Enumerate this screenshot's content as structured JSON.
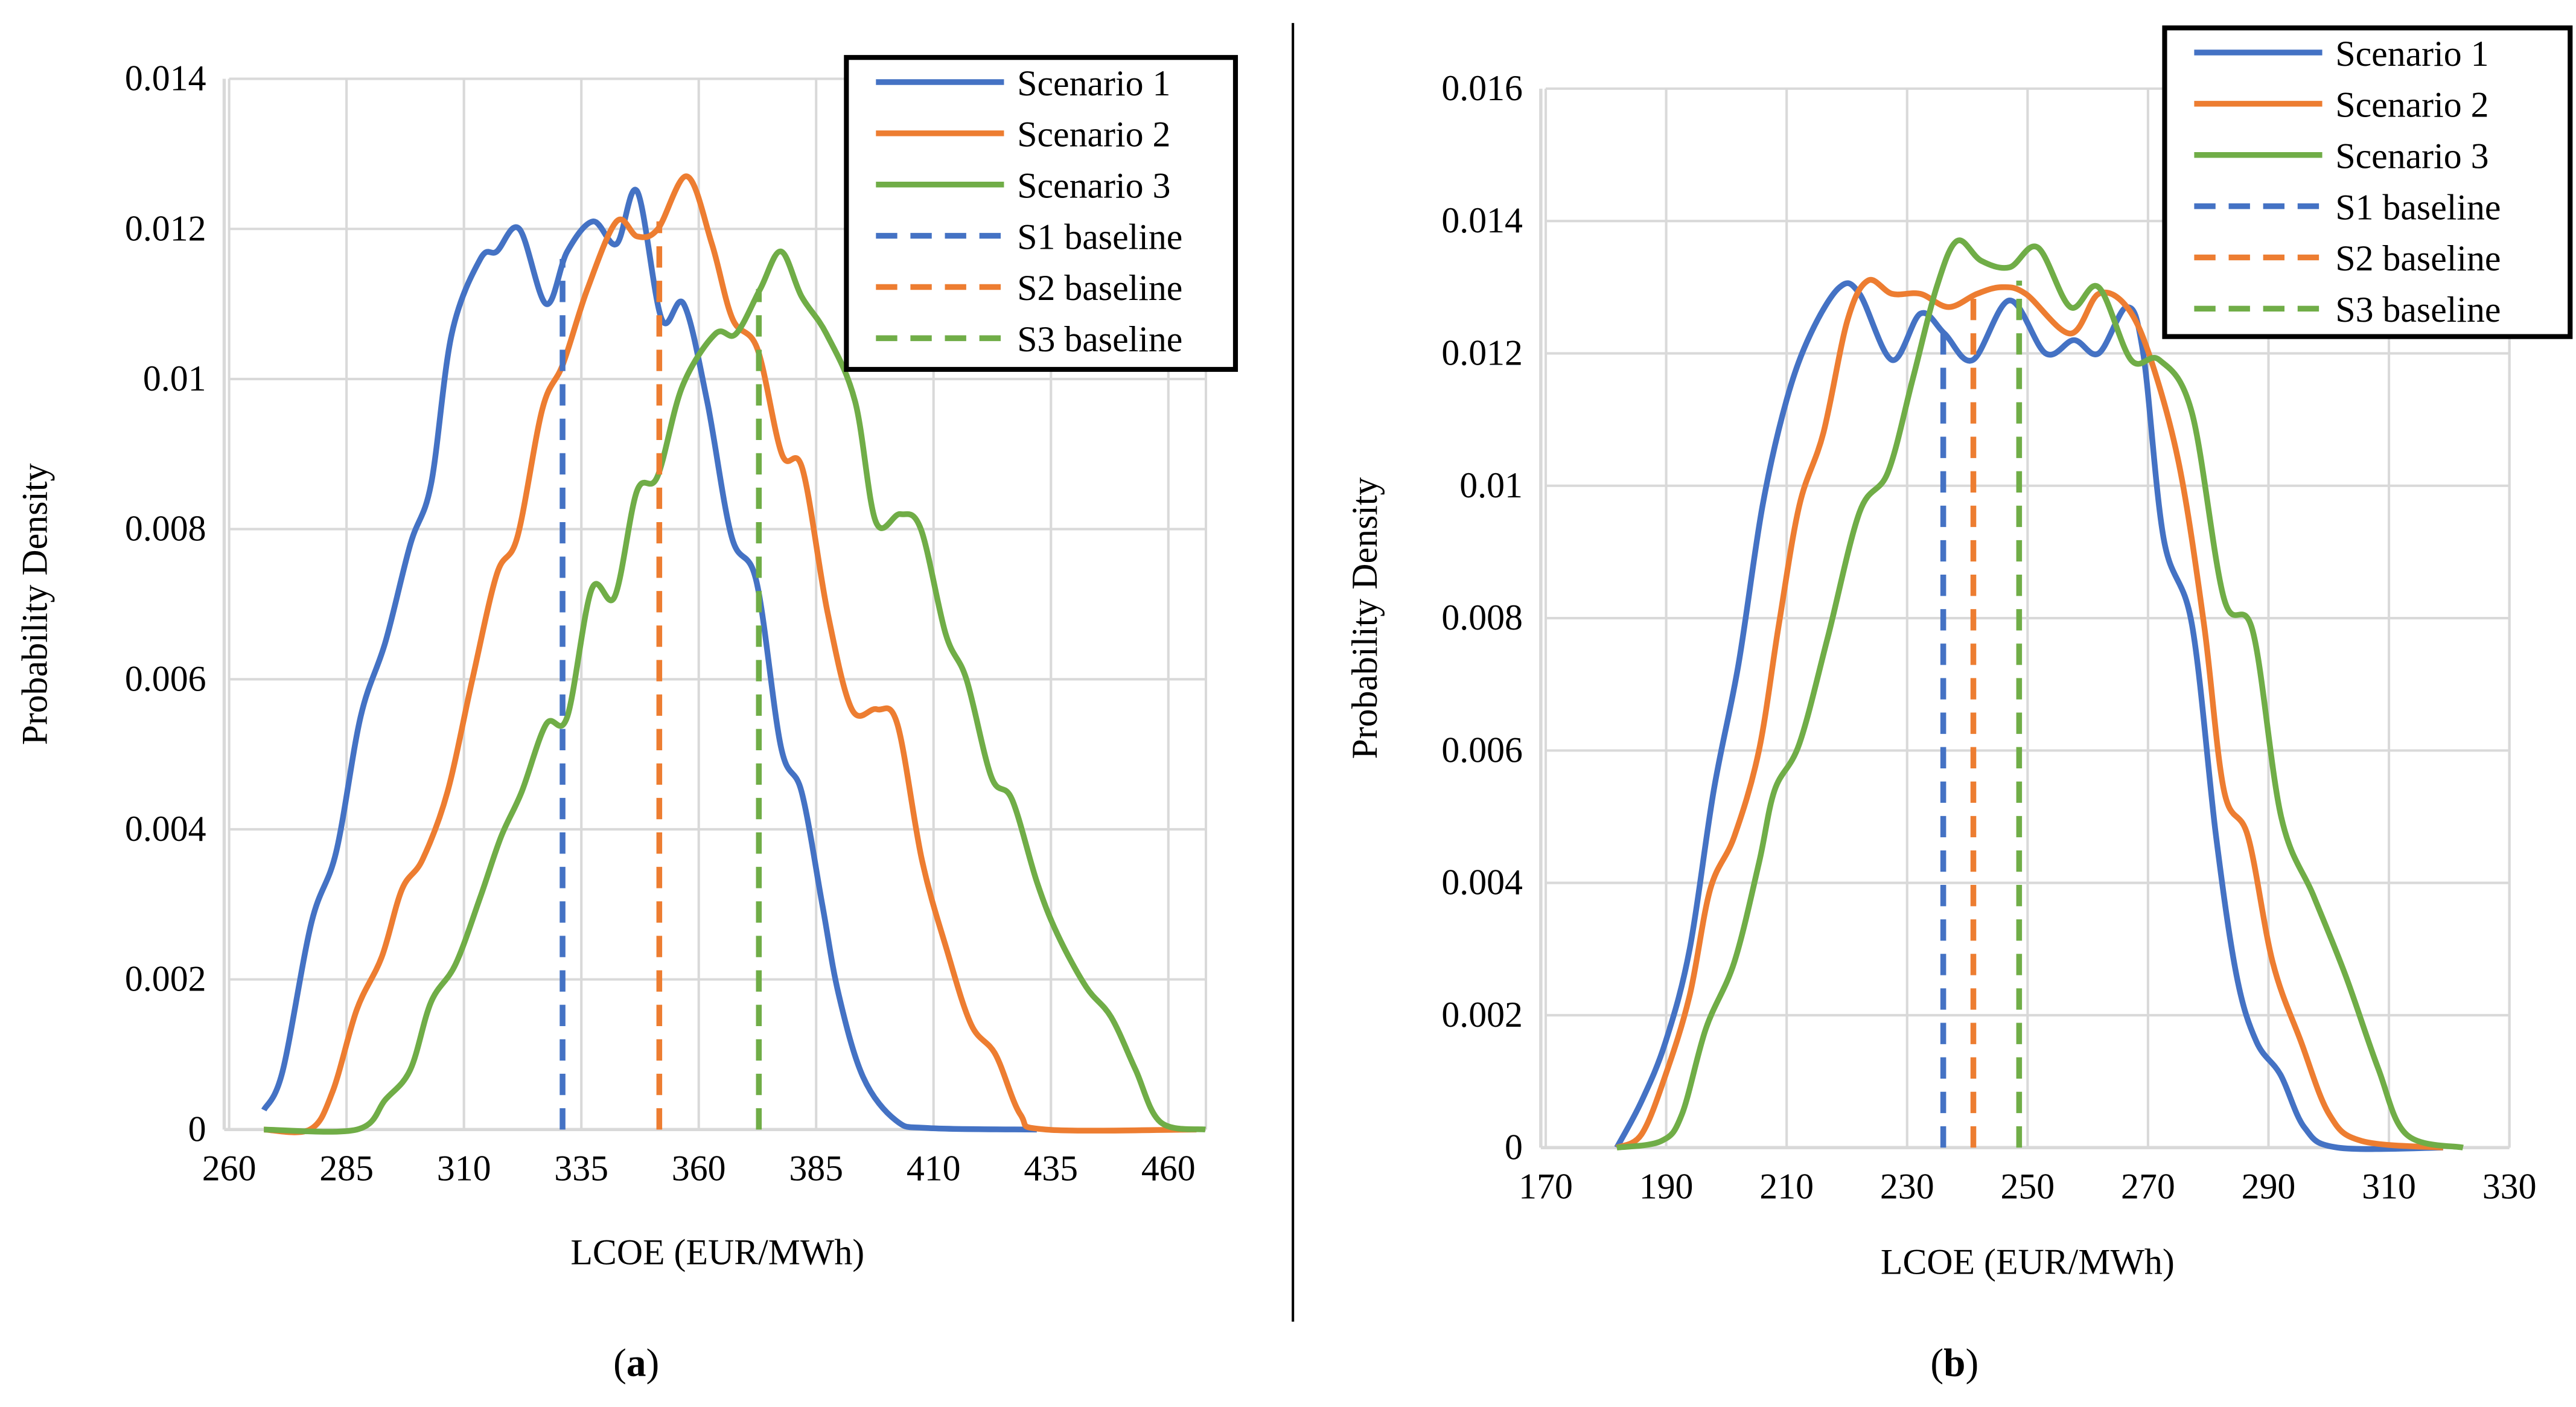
{
  "colors": {
    "s1": "#4472C4",
    "s2": "#ED7D31",
    "s3": "#70AD47",
    "grid": "#D9D9D9"
  },
  "chart_data": [
    {
      "type": "line",
      "caption_letter": "a",
      "xlabel": "LCOE (EUR/MWh)",
      "ylabel": "Probability Density",
      "xlim": [
        260,
        468
      ],
      "ylim": [
        0,
        0.014
      ],
      "xticks": [
        "260",
        "285",
        "310",
        "335",
        "360",
        "385",
        "410",
        "435",
        "460"
      ],
      "yticks": [
        "0",
        "0.002",
        "0.004",
        "0.006",
        "0.008",
        "0.01",
        "0.012",
        "0.014"
      ],
      "grid": true,
      "legend_position": "top-right",
      "legend": [
        "Scenario 1",
        "Scenario 2",
        "Scenario 3",
        "S1 baseline",
        "S2 baseline",
        "S3 baseline"
      ],
      "series": [
        {
          "name": "Scenario 1",
          "color_key": "s1",
          "x": [
            267.4,
            271.4,
            277.5,
            282.8,
            288,
            293.3,
            298.6,
            303,
            307.4,
            313.5,
            317,
            321.8,
            327.5,
            332,
            337.5,
            342.5,
            346.9,
            352.1,
            356.8,
            361.8,
            367,
            372.3,
            377.5,
            381.9,
            386.3,
            389.8,
            395,
            402,
            409,
            432
          ],
          "y": [
            0.00026,
            0.00078,
            0.00275,
            0.0037,
            0.0055,
            0.0065,
            0.0078,
            0.0086,
            0.0106,
            0.0116,
            0.0117,
            0.012,
            0.011,
            0.0117,
            0.0121,
            0.0118,
            0.0125,
            0.0108,
            0.011,
            0.0097,
            0.0079,
            0.0073,
            0.0051,
            0.0045,
            0.003,
            0.0018,
            0.0007,
            0.00012,
            2e-05,
            0
          ]
        },
        {
          "name": "Scenario 2",
          "color_key": "s2",
          "x": [
            267.4,
            277.2,
            282,
            287.2,
            292.5,
            296.8,
            301.2,
            306.5,
            311.8,
            317,
            321.4,
            326.7,
            331.1,
            336.3,
            342.5,
            346.9,
            351.3,
            357.5,
            362.8,
            367.2,
            372.5,
            377.7,
            382.1,
            387.4,
            392.6,
            397.9,
            402.3,
            407.5,
            412.8,
            418,
            423.2,
            428.5,
            434,
            466
          ],
          "y": [
            0,
            0,
            0.0005,
            0.0016,
            0.0023,
            0.0032,
            0.0036,
            0.0045,
            0.006,
            0.0074,
            0.0079,
            0.0096,
            0.0102,
            0.0112,
            0.0121,
            0.0119,
            0.012,
            0.0127,
            0.0118,
            0.0108,
            0.0104,
            0.009,
            0.0088,
            0.0069,
            0.0056,
            0.0056,
            0.0054,
            0.0036,
            0.0024,
            0.0014,
            0.001,
            0.0002,
            0,
            0
          ]
        },
        {
          "name": "Scenario 3",
          "color_key": "s3",
          "x": [
            267.4,
            287.2,
            293.3,
            298.6,
            303,
            308.2,
            313.5,
            317.9,
            322.3,
            327.5,
            332,
            337.2,
            342.1,
            346.8,
            351.2,
            356.5,
            363.5,
            367.9,
            373.1,
            377.5,
            381.9,
            387.2,
            393.3,
            397.7,
            402.9,
            407.3,
            412.6,
            417,
            422.3,
            426.7,
            432,
            436.4,
            442.5,
            447.8,
            453,
            458.3,
            467.9
          ],
          "y": [
            0,
            0,
            0.0004,
            0.0008,
            0.0017,
            0.0022,
            0.0031,
            0.0039,
            0.0045,
            0.0054,
            0.0055,
            0.0072,
            0.0071,
            0.0085,
            0.0087,
            0.0099,
            0.0106,
            0.0106,
            0.0112,
            0.0117,
            0.0111,
            0.0106,
            0.0097,
            0.0081,
            0.0082,
            0.008,
            0.0066,
            0.006,
            0.0047,
            0.0044,
            0.0033,
            0.0026,
            0.0019,
            0.0015,
            0.0008,
            0.0001,
            0
          ]
        }
      ],
      "baselines": [
        {
          "name": "S1 baseline",
          "color_key": "s1",
          "x": 331,
          "y_top": 0.0116
        },
        {
          "name": "S2 baseline",
          "color_key": "s2",
          "x": 351.6,
          "y_top": 0.0121
        },
        {
          "name": "S3 baseline",
          "color_key": "s3",
          "x": 372.8,
          "y_top": 0.0112
        }
      ]
    },
    {
      "type": "line",
      "caption_letter": "b",
      "xlabel": "LCOE (EUR/MWh)",
      "ylabel": "Probability Density",
      "xlim": [
        170,
        330
      ],
      "ylim": [
        0,
        0.016
      ],
      "xticks": [
        "170",
        "190",
        "210",
        "230",
        "250",
        "270",
        "290",
        "310",
        "330"
      ],
      "yticks": [
        "0",
        "0.002",
        "0.004",
        "0.006",
        "0.008",
        "0.01",
        "0.012",
        "0.014",
        "0.016"
      ],
      "grid": true,
      "legend_position": "top-right",
      "legend": [
        "Scenario 1",
        "Scenario 2",
        "Scenario 3",
        "S1 baseline",
        "S2 baseline",
        "S3 baseline"
      ],
      "series": [
        {
          "name": "Scenario 1",
          "color_key": "s1",
          "x": [
            181.8,
            185.9,
            189.9,
            193.9,
            197.9,
            202,
            206,
            210,
            214,
            218.8,
            222.1,
            227.5,
            232.2,
            236.2,
            240.9,
            247,
            253,
            257.7,
            261.8,
            266.5,
            269.2,
            272.6,
            277.3,
            281.3,
            284.7,
            288,
            292,
            296,
            301.5,
            319
          ],
          "y": [
            0,
            0.0007,
            0.0016,
            0.003,
            0.0054,
            0.0073,
            0.0097,
            0.0113,
            0.0123,
            0.013,
            0.0129,
            0.0119,
            0.0126,
            0.0123,
            0.0119,
            0.0128,
            0.012,
            0.0122,
            0.012,
            0.0127,
            0.012,
            0.0092,
            0.0079,
            0.0047,
            0.0026,
            0.0016,
            0.0011,
            0.0003,
            0,
            0
          ]
        },
        {
          "name": "Scenario 2",
          "color_key": "s2",
          "x": [
            181.8,
            185.9,
            189.9,
            193.9,
            197.3,
            201.3,
            205.4,
            208.7,
            212.1,
            216.1,
            220.1,
            223.5,
            227.5,
            232.2,
            236.9,
            241.6,
            245.7,
            249.7,
            257.1,
            261.8,
            266.5,
            270.5,
            275.2,
            279.3,
            282.6,
            286.6,
            290.7,
            295.4,
            300.1,
            305.5,
            319
          ],
          "y": [
            0,
            0.0002,
            0.0011,
            0.0023,
            0.0039,
            0.0047,
            0.006,
            0.0079,
            0.0097,
            0.0108,
            0.0125,
            0.0131,
            0.0129,
            0.0129,
            0.0127,
            0.0129,
            0.013,
            0.0129,
            0.0123,
            0.0129,
            0.0127,
            0.0119,
            0.0103,
            0.0079,
            0.0054,
            0.0047,
            0.0028,
            0.0016,
            0.0005,
            0.0001,
            0
          ]
        },
        {
          "name": "Scenario 3",
          "color_key": "s3",
          "x": [
            181.8,
            189.2,
            192.6,
            196.6,
            201.3,
            205.4,
            208,
            212.1,
            216.8,
            222.1,
            226.8,
            230.9,
            234.9,
            238.3,
            242.3,
            247,
            251.7,
            257.1,
            261.8,
            267.2,
            271.9,
            277.3,
            282.6,
            287.4,
            292.1,
            297.5,
            302.8,
            308.2,
            312.9,
            322.3
          ],
          "y": [
            0,
            0.0001,
            0.0005,
            0.0018,
            0.0028,
            0.0043,
            0.0054,
            0.0061,
            0.0077,
            0.0096,
            0.0102,
            0.0116,
            0.013,
            0.0137,
            0.0134,
            0.0133,
            0.0136,
            0.0127,
            0.013,
            0.0119,
            0.0119,
            0.0111,
            0.0083,
            0.0078,
            0.005,
            0.0038,
            0.0026,
            0.0012,
            0.0002,
            0
          ]
        }
      ],
      "baselines": [
        {
          "name": "S1 baseline",
          "color_key": "s1",
          "x": 236,
          "y_top": 0.0123
        },
        {
          "name": "S2 baseline",
          "color_key": "s2",
          "x": 241,
          "y_top": 0.013
        },
        {
          "name": "S3 baseline",
          "color_key": "s3",
          "x": 248.6,
          "y_top": 0.0131
        }
      ]
    }
  ]
}
